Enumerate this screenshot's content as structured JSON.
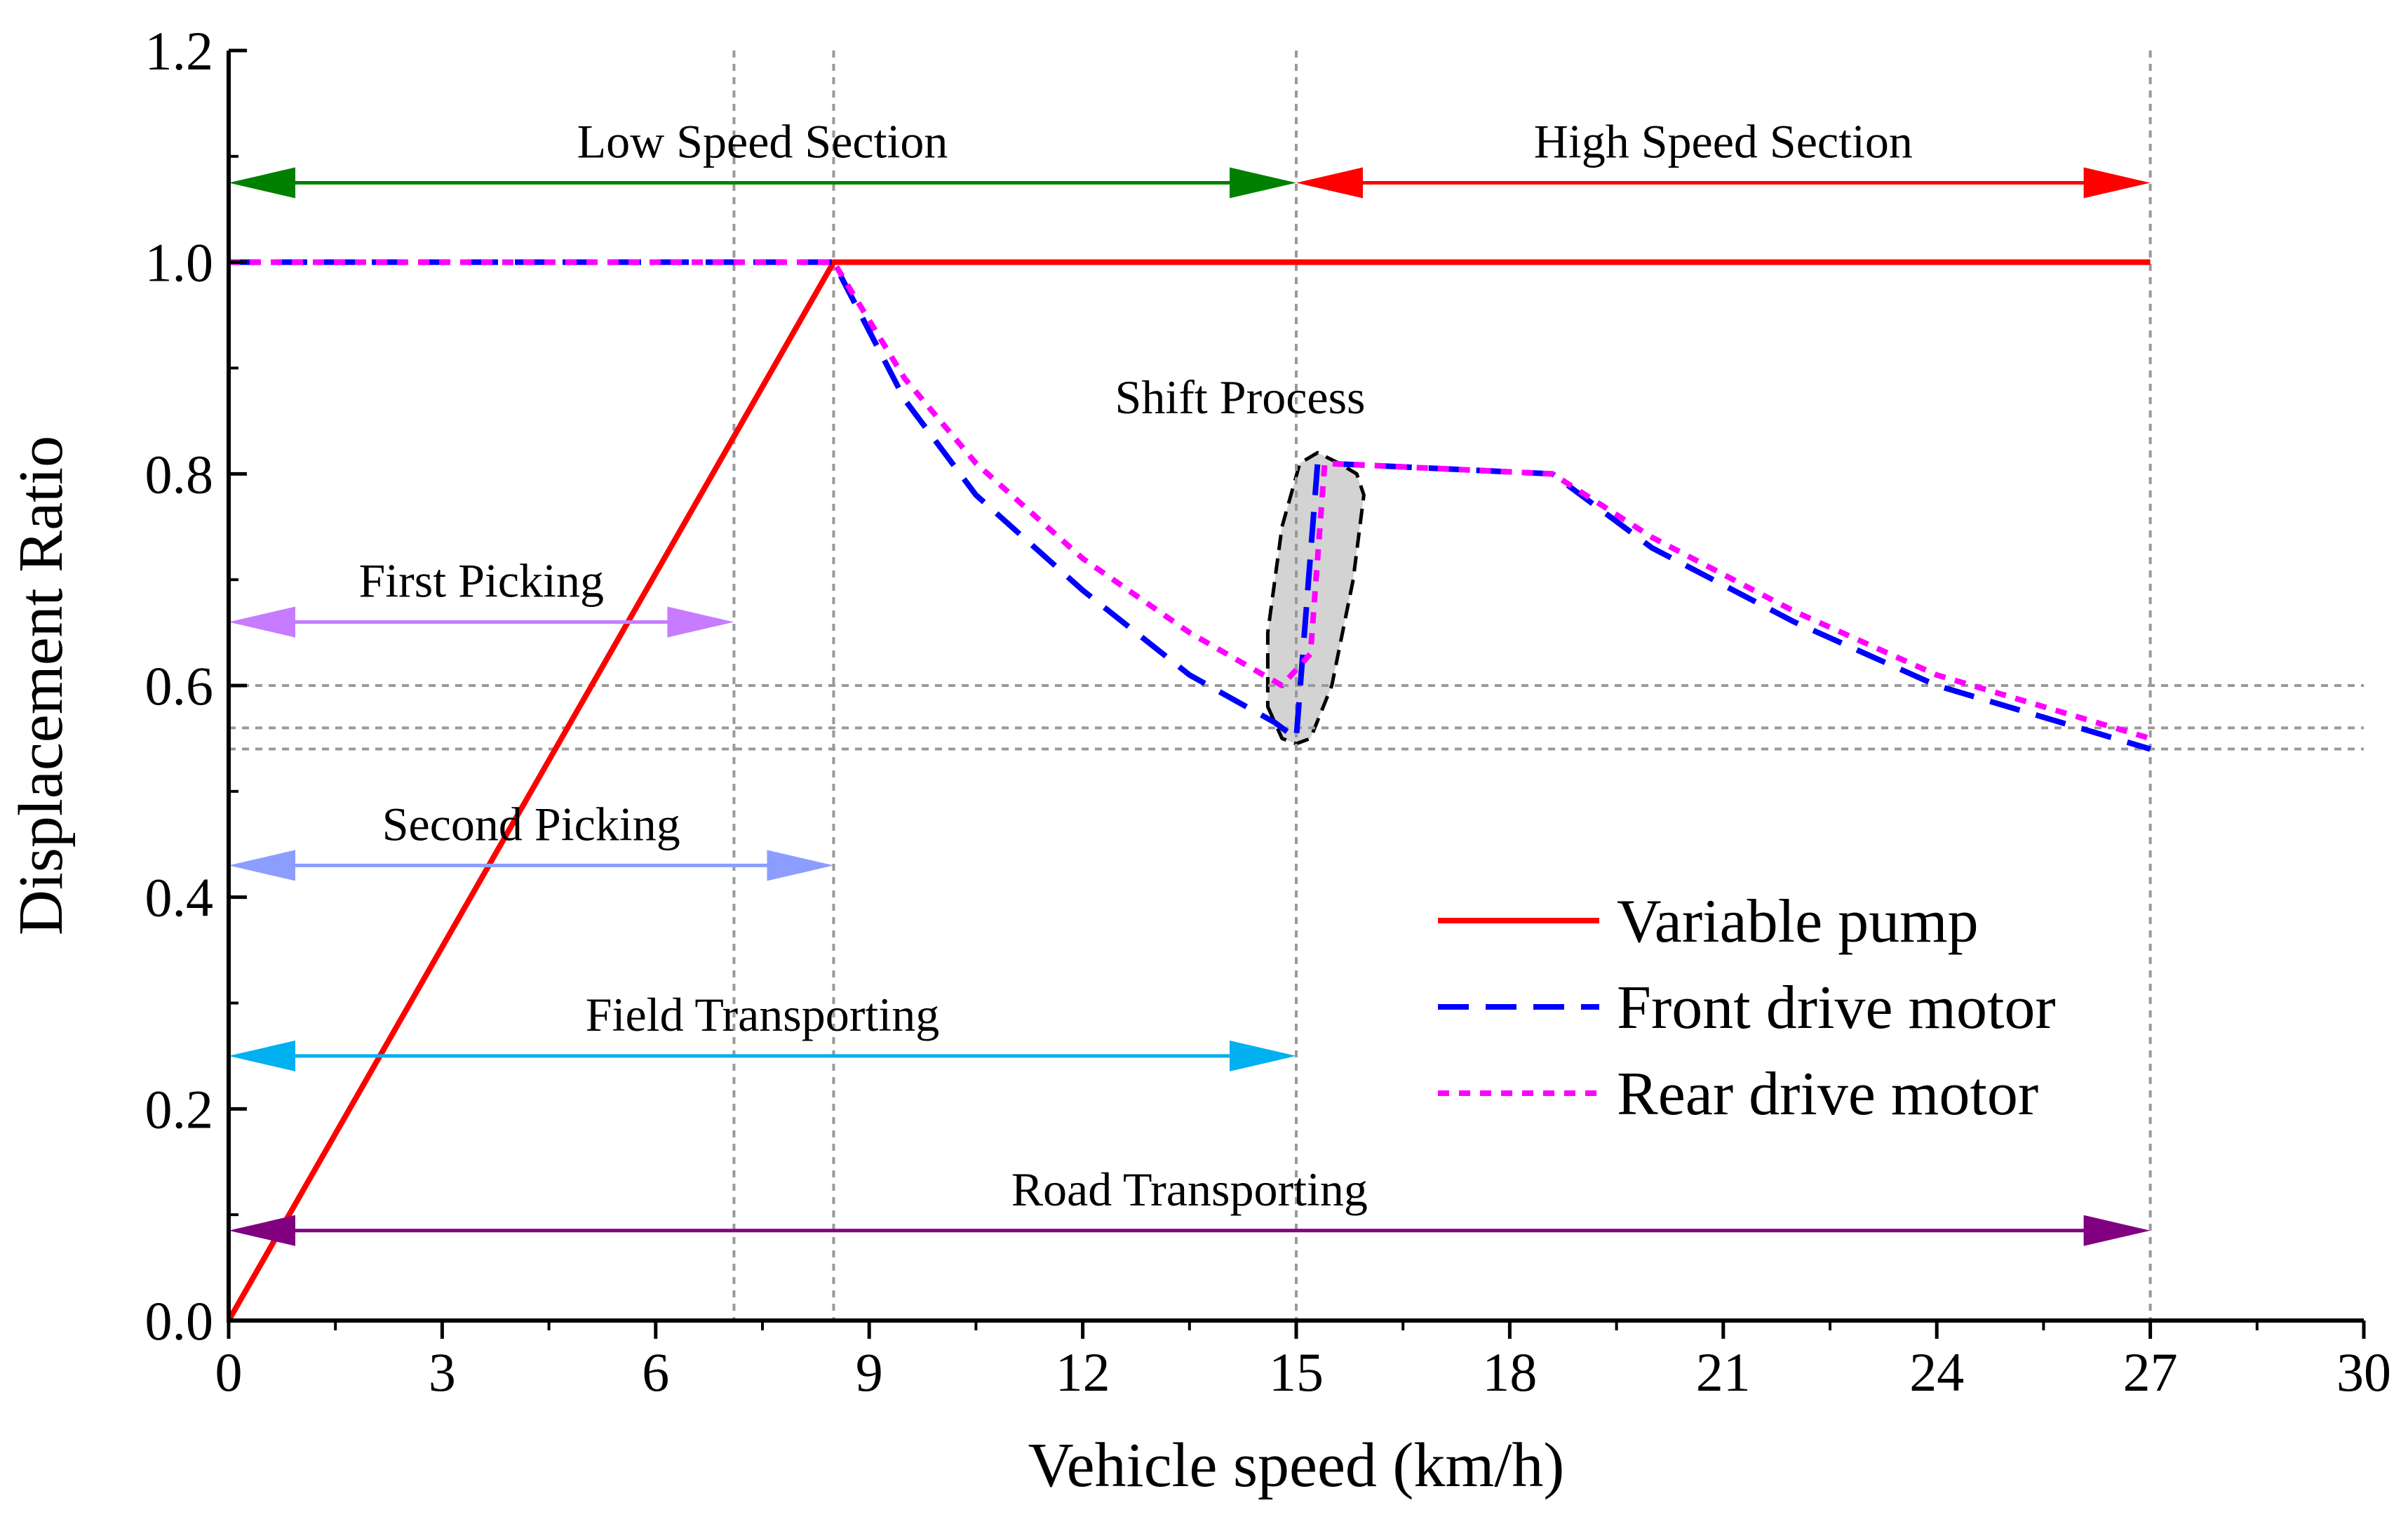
{
  "chart_data": {
    "type": "line",
    "title": "",
    "xlabel": "Vehicle speed (km/h)",
    "ylabel": "Displacement Ratio",
    "xlim": [
      0,
      30
    ],
    "ylim": [
      0,
      1.2
    ],
    "xticks": [
      0,
      3,
      6,
      9,
      12,
      15,
      18,
      21,
      24,
      27,
      30
    ],
    "xtick_labels": [
      "0",
      "3",
      "6",
      "9",
      "12",
      "15",
      "18",
      "21",
      "24",
      "27",
      "30"
    ],
    "yticks": [
      0.0,
      0.2,
      0.4,
      0.6,
      0.8,
      1.0,
      1.2
    ],
    "ytick_labels": [
      "0.0",
      "0.2",
      "0.4",
      "0.6",
      "0.8",
      "1.0",
      "1.2"
    ],
    "grid": false,
    "legend_position": "lower-right",
    "series": [
      {
        "name": "Variable pump",
        "color": "#ff0000",
        "style": "solid",
        "x": [
          0,
          8.5,
          27
        ],
        "y": [
          0.0,
          1.0,
          1.0
        ]
      },
      {
        "name": "Front drive motor",
        "color": "#0000ff",
        "style": "dashed",
        "x": [
          0,
          8.5,
          9.5,
          10.5,
          12,
          13.5,
          14.7,
          15.0,
          15.3,
          15.4,
          17,
          18.6,
          20,
          22,
          24,
          27
        ],
        "y": [
          1.0,
          1.0,
          0.87,
          0.78,
          0.69,
          0.61,
          0.565,
          0.55,
          0.81,
          0.81,
          0.805,
          0.8,
          0.73,
          0.66,
          0.6,
          0.54
        ]
      },
      {
        "name": "Rear drive motor",
        "color": "#ff00ff",
        "style": "dotted",
        "x": [
          0,
          8.5,
          9.5,
          10.5,
          12,
          13.5,
          14.8,
          15.2,
          15.4,
          17,
          18.6,
          20,
          22,
          24,
          27
        ],
        "y": [
          1.0,
          1.0,
          0.89,
          0.81,
          0.72,
          0.65,
          0.6,
          0.63,
          0.81,
          0.805,
          0.8,
          0.74,
          0.67,
          0.61,
          0.55
        ]
      }
    ],
    "reference_lines": {
      "vertical_x": [
        7.1,
        8.5,
        15,
        27
      ],
      "horizontal_y": [
        0.6,
        0.56,
        0.54
      ]
    },
    "ranges": [
      {
        "label": "Low Speed Section",
        "x_start": 0,
        "x_end": 15,
        "y": 1.075,
        "color": "#008000"
      },
      {
        "label": "High Speed Section",
        "x_start": 15,
        "x_end": 27,
        "y": 1.075,
        "color": "#ff0000"
      },
      {
        "label": "First Picking",
        "x_start": 0,
        "x_end": 7.1,
        "y": 0.66,
        "color": "#c77cff"
      },
      {
        "label": "Second Picking",
        "x_start": 0,
        "x_end": 8.5,
        "y": 0.43,
        "color": "#8b9eff"
      },
      {
        "label": "Field Transporting",
        "x_start": 0,
        "x_end": 15,
        "y": 0.25,
        "color": "#00b0f0"
      },
      {
        "label": "Road Transporting",
        "x_start": 0,
        "x_end": 27,
        "y": 0.085,
        "color": "#800080"
      }
    ],
    "annotations": [
      {
        "label": "Shift Process",
        "x": 14.5,
        "y": 0.86
      }
    ],
    "shift_region": {
      "fill": "#d3d3d3",
      "x_center": 15.4,
      "y_center": 0.68,
      "x": [
        14.6,
        14.8,
        15.0,
        15.2,
        15.5,
        15.8,
        15.95,
        15.85,
        15.6,
        15.3,
        15.05,
        14.8,
        14.6
      ],
      "y": [
        0.58,
        0.55,
        0.545,
        0.55,
        0.6,
        0.7,
        0.78,
        0.8,
        0.81,
        0.82,
        0.81,
        0.75,
        0.65
      ]
    }
  }
}
